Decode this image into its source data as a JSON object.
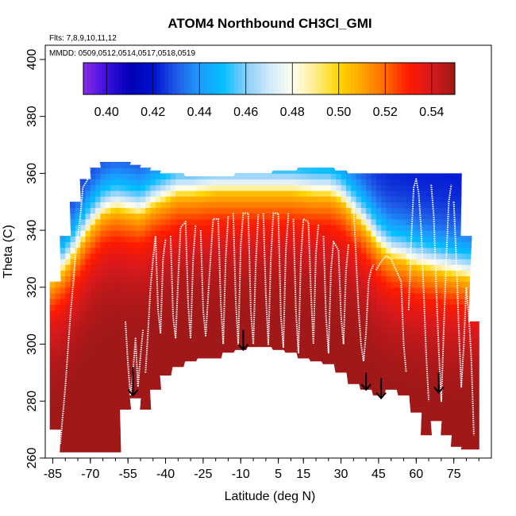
{
  "chart_data": {
    "type": "heatmap",
    "title": "ATOM4 Northbound CH3Cl_GMI",
    "flights_label": "Flts: 7,8,9,10,11,12",
    "dates_label": "MMDD: 0509,0512,0514,0517,0518,0519",
    "xlabel": "Latitude (deg N)",
    "ylabel": "Theta (C)",
    "xlim": [
      -88,
      90
    ],
    "ylim": [
      260,
      405
    ],
    "x_ticks": [
      -85,
      -70,
      -55,
      -40,
      -25,
      -10,
      5,
      15,
      30,
      45,
      60,
      75
    ],
    "x_tick_labels": [
      "-85",
      "-70",
      "-55",
      "-40",
      "-25",
      "-10",
      "5",
      "15",
      "30",
      "45",
      "60",
      "75"
    ],
    "y_ticks": [
      260,
      280,
      300,
      320,
      340,
      360,
      380,
      400
    ],
    "y_tick_labels": [
      "260",
      "280",
      "300",
      "320",
      "340",
      "360",
      "380",
      "400"
    ],
    "colorbar": {
      "range": [
        0.39,
        0.55
      ],
      "ticks": [
        0.4,
        0.42,
        0.44,
        0.46,
        0.48,
        0.5,
        0.52,
        0.54
      ],
      "tick_labels": [
        "0.40",
        "0.42",
        "0.44",
        "0.46",
        "0.48",
        "0.50",
        "0.52",
        "0.54"
      ],
      "stops": [
        {
          "v": 0.39,
          "color": "#8a2be2"
        },
        {
          "v": 0.4,
          "color": "#3a10e0"
        },
        {
          "v": 0.41,
          "color": "#0000b4"
        },
        {
          "v": 0.42,
          "color": "#0010d0"
        },
        {
          "v": 0.43,
          "color": "#1e5ae6"
        },
        {
          "v": 0.44,
          "color": "#1e9bff"
        },
        {
          "v": 0.45,
          "color": "#00bfff"
        },
        {
          "v": 0.46,
          "color": "#87cefa"
        },
        {
          "v": 0.47,
          "color": "#cfe8fa"
        },
        {
          "v": 0.48,
          "color": "#fffff0"
        },
        {
          "v": 0.49,
          "color": "#ffec8b"
        },
        {
          "v": 0.5,
          "color": "#ffd700"
        },
        {
          "v": 0.51,
          "color": "#ffa500"
        },
        {
          "v": 0.52,
          "color": "#ff6a00"
        },
        {
          "v": 0.53,
          "color": "#ff1a00"
        },
        {
          "v": 0.54,
          "color": "#d7191c"
        },
        {
          "v": 0.55,
          "color": "#a01818"
        }
      ]
    },
    "field": {
      "columns": [
        {
          "lat": -84,
          "bottom": 270,
          "top": 322
        },
        {
          "lat": -80,
          "bottom": 262,
          "top": 338
        },
        {
          "lat": -76,
          "bottom": 262,
          "top": 350
        },
        {
          "lat": -72,
          "bottom": 262,
          "top": 358
        },
        {
          "lat": -68,
          "bottom": 262,
          "top": 362
        },
        {
          "lat": -64,
          "bottom": 262,
          "top": 364
        },
        {
          "lat": -60,
          "bottom": 262,
          "top": 364
        },
        {
          "lat": -56,
          "bottom": 277,
          "top": 364
        },
        {
          "lat": -52,
          "bottom": 281,
          "top": 363
        },
        {
          "lat": -48,
          "bottom": 277,
          "top": 362
        },
        {
          "lat": -44,
          "bottom": 284,
          "top": 361
        },
        {
          "lat": -40,
          "bottom": 289,
          "top": 360
        },
        {
          "lat": -35,
          "bottom": 292,
          "top": 360
        },
        {
          "lat": -30,
          "bottom": 294,
          "top": 359
        },
        {
          "lat": -25,
          "bottom": 295,
          "top": 359
        },
        {
          "lat": -20,
          "bottom": 295,
          "top": 359
        },
        {
          "lat": -15,
          "bottom": 297,
          "top": 359
        },
        {
          "lat": -10,
          "bottom": 298,
          "top": 360
        },
        {
          "lat": -5,
          "bottom": 299,
          "top": 360
        },
        {
          "lat": 0,
          "bottom": 299,
          "top": 360
        },
        {
          "lat": 5,
          "bottom": 298,
          "top": 361
        },
        {
          "lat": 10,
          "bottom": 297,
          "top": 361
        },
        {
          "lat": 15,
          "bottom": 295,
          "top": 362
        },
        {
          "lat": 20,
          "bottom": 294,
          "top": 362
        },
        {
          "lat": 25,
          "bottom": 293,
          "top": 362
        },
        {
          "lat": 30,
          "bottom": 290,
          "top": 361
        },
        {
          "lat": 35,
          "bottom": 286,
          "top": 360
        },
        {
          "lat": 40,
          "bottom": 284,
          "top": 360
        },
        {
          "lat": 45,
          "bottom": 282,
          "top": 360
        },
        {
          "lat": 50,
          "bottom": 284,
          "top": 360
        },
        {
          "lat": 55,
          "bottom": 282,
          "top": 360
        },
        {
          "lat": 60,
          "bottom": 276,
          "top": 360
        },
        {
          "lat": 64,
          "bottom": 268,
          "top": 360
        },
        {
          "lat": 68,
          "bottom": 273,
          "top": 360
        },
        {
          "lat": 72,
          "bottom": 268,
          "top": 360
        },
        {
          "lat": 76,
          "bottom": 264,
          "top": 360
        },
        {
          "lat": 80,
          "bottom": 263,
          "top": 338
        },
        {
          "lat": 83,
          "bottom": 263,
          "top": 308
        }
      ],
      "interface_theta": [
        [
          -85,
          322
        ],
        [
          -80,
          326
        ],
        [
          -75,
          333
        ],
        [
          -70,
          340
        ],
        [
          -65,
          345
        ],
        [
          -60,
          347
        ],
        [
          -55,
          346
        ],
        [
          -50,
          345
        ],
        [
          -45,
          348
        ],
        [
          -40,
          350
        ],
        [
          -35,
          352
        ],
        [
          -30,
          352
        ],
        [
          -20,
          353
        ],
        [
          -10,
          353
        ],
        [
          0,
          353
        ],
        [
          10,
          353
        ],
        [
          20,
          352
        ],
        [
          25,
          352
        ],
        [
          30,
          350
        ],
        [
          35,
          345
        ],
        [
          40,
          340
        ],
        [
          45,
          334
        ],
        [
          50,
          330
        ],
        [
          55,
          329
        ],
        [
          60,
          327
        ],
        [
          65,
          326
        ],
        [
          70,
          325
        ],
        [
          75,
          324
        ],
        [
          80,
          323
        ],
        [
          85,
          322
        ]
      ]
    },
    "arrows": [
      {
        "lat": -53,
        "theta_top": 292,
        "theta_tip": 282
      },
      {
        "lat": -9,
        "theta_top": 305,
        "theta_tip": 298
      },
      {
        "lat": 40,
        "theta_top": 290,
        "theta_tip": 284
      },
      {
        "lat": 46,
        "theta_top": 288,
        "theta_tip": 281
      },
      {
        "lat": 69,
        "theta_top": 290,
        "theta_tip": 283
      }
    ],
    "flight_tracks": [
      {
        "name": "profile-1",
        "points": [
          [
            -82,
            265
          ],
          [
            -80,
            285
          ],
          [
            -78,
            310
          ],
          [
            -76,
            330
          ],
          [
            -74,
            345
          ],
          [
            -73,
            355
          ],
          [
            -71,
            358
          ],
          [
            -70,
            362
          ]
        ]
      },
      {
        "name": "profile-2",
        "points": [
          [
            -56,
            308
          ],
          [
            -55,
            293
          ],
          [
            -54,
            282
          ],
          [
            -53,
            290
          ],
          [
            -52,
            302
          ],
          [
            -51,
            285
          ],
          [
            -50,
            296
          ],
          [
            -49,
            305
          ]
        ]
      },
      {
        "name": "profile-3",
        "points": [
          [
            -48,
            290
          ],
          [
            -47,
            304
          ],
          [
            -46,
            320
          ],
          [
            -45,
            330
          ],
          [
            -44,
            338
          ],
          [
            -43,
            312
          ],
          [
            -42,
            304
          ],
          [
            -41,
            330
          ],
          [
            -40,
            337
          ]
        ]
      },
      {
        "name": "profile-4",
        "points": [
          [
            -38,
            338
          ],
          [
            -37,
            310
          ],
          [
            -36,
            302
          ],
          [
            -35,
            322
          ],
          [
            -34,
            341
          ],
          [
            -32,
            343
          ],
          [
            -31,
            314
          ],
          [
            -30,
            302
          ],
          [
            -29,
            330
          ],
          [
            -28,
            342
          ]
        ]
      },
      {
        "name": "profile-5",
        "points": [
          [
            -26,
            340
          ],
          [
            -25,
            312
          ],
          [
            -24,
            303
          ],
          [
            -22,
            331
          ],
          [
            -21,
            344
          ],
          [
            -19,
            344
          ],
          [
            -18,
            315
          ],
          [
            -17,
            300
          ],
          [
            -16,
            330
          ],
          [
            -15,
            345
          ]
        ]
      },
      {
        "name": "profile-6",
        "points": [
          [
            -13,
            346
          ],
          [
            -12,
            315
          ],
          [
            -11,
            300
          ],
          [
            -10,
            335
          ],
          [
            -9,
            346
          ],
          [
            -7,
            346
          ],
          [
            -6,
            312
          ],
          [
            -5,
            300
          ],
          [
            -4,
            328
          ],
          [
            -3,
            346
          ]
        ]
      },
      {
        "name": "profile-7",
        "points": [
          [
            -1,
            346
          ],
          [
            0,
            318
          ],
          [
            1,
            300
          ],
          [
            2,
            330
          ],
          [
            3,
            346
          ],
          [
            5,
            346
          ],
          [
            6,
            310
          ],
          [
            7,
            299
          ],
          [
            8,
            333
          ],
          [
            9,
            346
          ]
        ]
      },
      {
        "name": "profile-8",
        "points": [
          [
            11,
            344
          ],
          [
            12,
            312
          ],
          [
            13,
            297
          ],
          [
            14,
            330
          ],
          [
            15,
            344
          ],
          [
            17,
            343
          ],
          [
            18,
            318
          ],
          [
            19,
            300
          ],
          [
            20,
            332
          ],
          [
            21,
            342
          ]
        ]
      },
      {
        "name": "profile-9",
        "points": [
          [
            23,
            338
          ],
          [
            24,
            310
          ],
          [
            25,
            297
          ],
          [
            26,
            326
          ],
          [
            27,
            336
          ],
          [
            29,
            333
          ],
          [
            30,
            310
          ],
          [
            31,
            300
          ],
          [
            32,
            326
          ],
          [
            33,
            335
          ]
        ]
      },
      {
        "name": "profile-10",
        "points": [
          [
            35,
            350
          ],
          [
            36,
            330
          ],
          [
            37,
            312
          ],
          [
            38,
            300
          ],
          [
            39,
            294
          ],
          [
            40,
            304
          ],
          [
            41,
            322
          ],
          [
            42,
            326
          ],
          [
            43,
            328
          ]
        ]
      },
      {
        "name": "profile-11",
        "points": [
          [
            44,
            326
          ],
          [
            46,
            329
          ],
          [
            48,
            331
          ],
          [
            50,
            330
          ],
          [
            52,
            326
          ],
          [
            54,
            322
          ],
          [
            55,
            300
          ],
          [
            56,
            290
          ]
        ]
      },
      {
        "name": "profile-12",
        "points": [
          [
            57,
            312
          ],
          [
            58,
            336
          ],
          [
            59,
            355
          ],
          [
            60,
            358
          ],
          [
            61,
            353
          ],
          [
            62,
            340
          ],
          [
            63,
            318
          ],
          [
            64,
            296
          ],
          [
            65,
            280
          ]
        ]
      },
      {
        "name": "profile-13",
        "points": [
          [
            66,
            356
          ],
          [
            67,
            345
          ],
          [
            68,
            320
          ],
          [
            69,
            298
          ],
          [
            70,
            280
          ],
          [
            71,
            305
          ],
          [
            72,
            330
          ],
          [
            73,
            350
          ],
          [
            74,
            356
          ]
        ]
      },
      {
        "name": "profile-14",
        "points": [
          [
            75,
            350
          ],
          [
            76,
            330
          ],
          [
            77,
            305
          ],
          [
            78,
            285
          ],
          [
            79,
            300
          ],
          [
            80,
            320
          ],
          [
            81,
            310
          ],
          [
            82,
            295
          ],
          [
            83,
            268
          ]
        ]
      }
    ]
  }
}
